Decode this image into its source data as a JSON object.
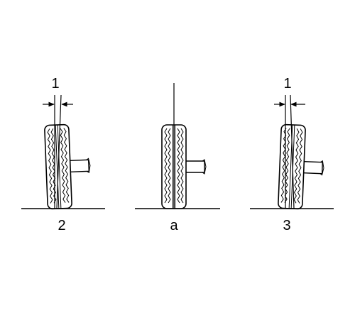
{
  "colors": {
    "line": "#000000",
    "background": "#ffffff"
  },
  "panels": [
    {
      "id": "negative-camber",
      "callout_label": "1",
      "bottom_label": "2"
    },
    {
      "id": "zero-camber",
      "callout_label": "",
      "bottom_label": "a"
    },
    {
      "id": "positive-camber",
      "callout_label": "1",
      "bottom_label": "3"
    }
  ]
}
